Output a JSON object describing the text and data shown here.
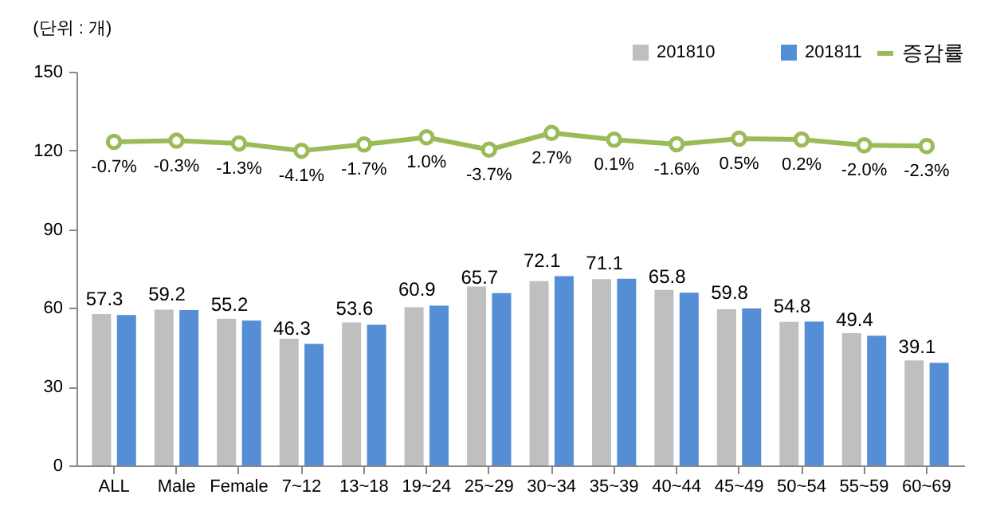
{
  "chart_data": {
    "type": "bar",
    "categories": [
      "ALL",
      "Male",
      "Female",
      "7~12",
      "13~18",
      "19~24",
      "25~29",
      "30~34",
      "35~39",
      "40~44",
      "45~49",
      "50~54",
      "55~59",
      "60~69"
    ],
    "series": [
      {
        "name": "201810",
        "color": "#bfbfbf",
        "values": [
          57.7,
          59.4,
          55.9,
          48.3,
          54.5,
          60.3,
          68.2,
          70.2,
          71.0,
          66.9,
          59.5,
          54.7,
          50.4,
          40.0
        ]
      },
      {
        "name": "201811",
        "color": "#558ed5",
        "values": [
          57.3,
          59.2,
          55.2,
          46.3,
          53.6,
          60.9,
          65.7,
          72.1,
          71.1,
          65.8,
          59.8,
          54.8,
          49.4,
          39.1
        ],
        "value_labels": [
          "57.3",
          "59.2",
          "55.2",
          "46.3",
          "53.6",
          "60.9",
          "65.7",
          "72.1",
          "71.1",
          "65.8",
          "59.8",
          "54.8",
          "49.4",
          "39.1"
        ]
      },
      {
        "name": "증감률",
        "type": "line",
        "axis": "y2",
        "color": "#9bbb59",
        "values": [
          -0.7,
          -0.3,
          -1.3,
          -4.1,
          -1.7,
          1.0,
          -3.7,
          2.7,
          0.1,
          -1.6,
          0.5,
          0.2,
          -2.0,
          -2.3
        ],
        "value_labels": [
          "-0.7%",
          "-0.3%",
          "-1.3%",
          "-4.1%",
          "-1.7%",
          "1.0%",
          "-3.7%",
          "2.7%",
          "0.1%",
          "-1.6%",
          "0.5%",
          "0.2%",
          "-2.0%",
          "-2.3%"
        ]
      }
    ],
    "ylim": [
      0,
      150
    ],
    "yticks": [
      0,
      30,
      60,
      90,
      120,
      150
    ],
    "y2lim": [
      -124,
      26
    ],
    "marker": "circle",
    "legend": "top right",
    "grid": false,
    "annotations": [
      "(단위 : 개)"
    ]
  }
}
